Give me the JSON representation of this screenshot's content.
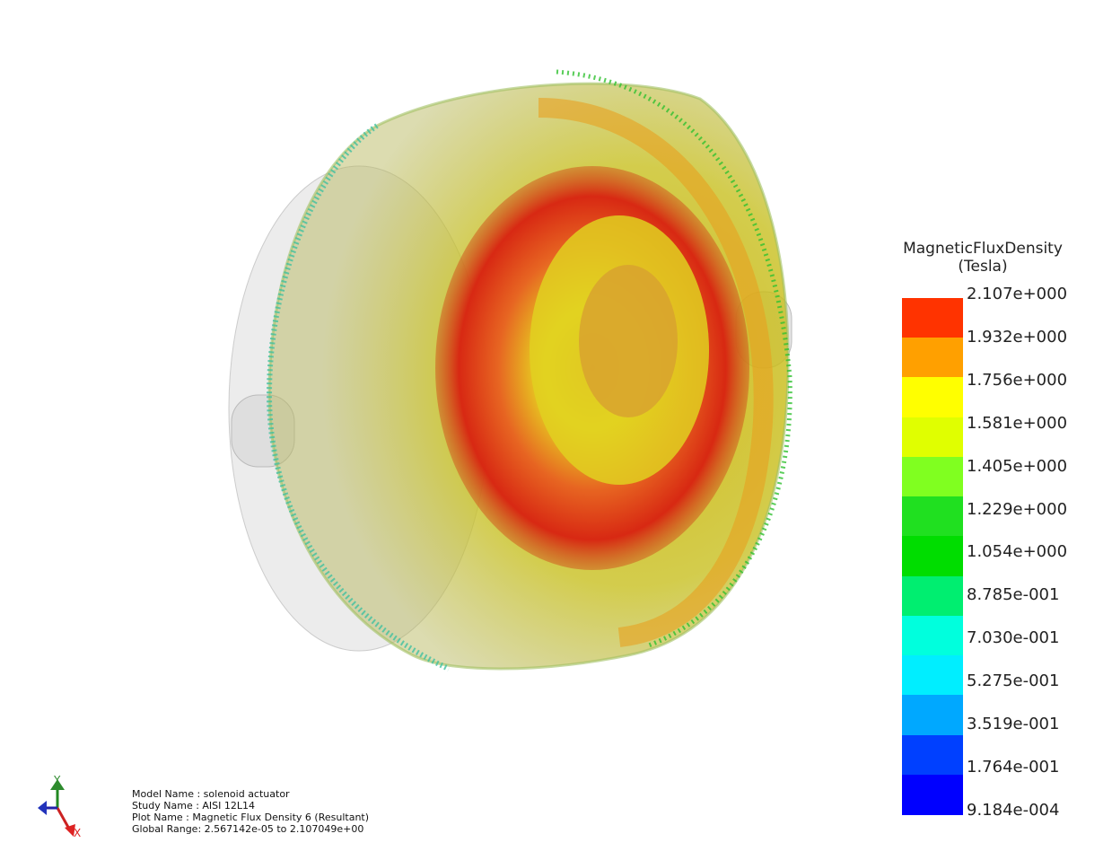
{
  "legend": {
    "title": "MagneticFluxDensity",
    "unit": "(Tesla)",
    "ticks": [
      "2.107e+000",
      "1.932e+000",
      "1.756e+000",
      "1.581e+000",
      "1.405e+000",
      "1.229e+000",
      "1.054e+000",
      "8.785e-001",
      "7.030e-001",
      "5.275e-001",
      "3.519e-001",
      "1.764e-001",
      "9.184e-004"
    ],
    "colors": [
      "#ff3300",
      "#ffa000",
      "#ffff00",
      "#e0ff00",
      "#80ff20",
      "#20e020",
      "#00dd00",
      "#00ee70",
      "#00ffdd",
      "#00eeff",
      "#00a8ff",
      "#0040ff",
      "#0000ff"
    ]
  },
  "info": {
    "model": "Model Name : solenoid actuator",
    "study": "Study Name : AISI 12L14",
    "plot": "Plot Name : Magnetic Flux Density 6 (Resultant)",
    "range": "Global Range: 2.567142e-05 to 2.107049e+00"
  },
  "triad": {
    "y": "Y",
    "x": "X"
  }
}
